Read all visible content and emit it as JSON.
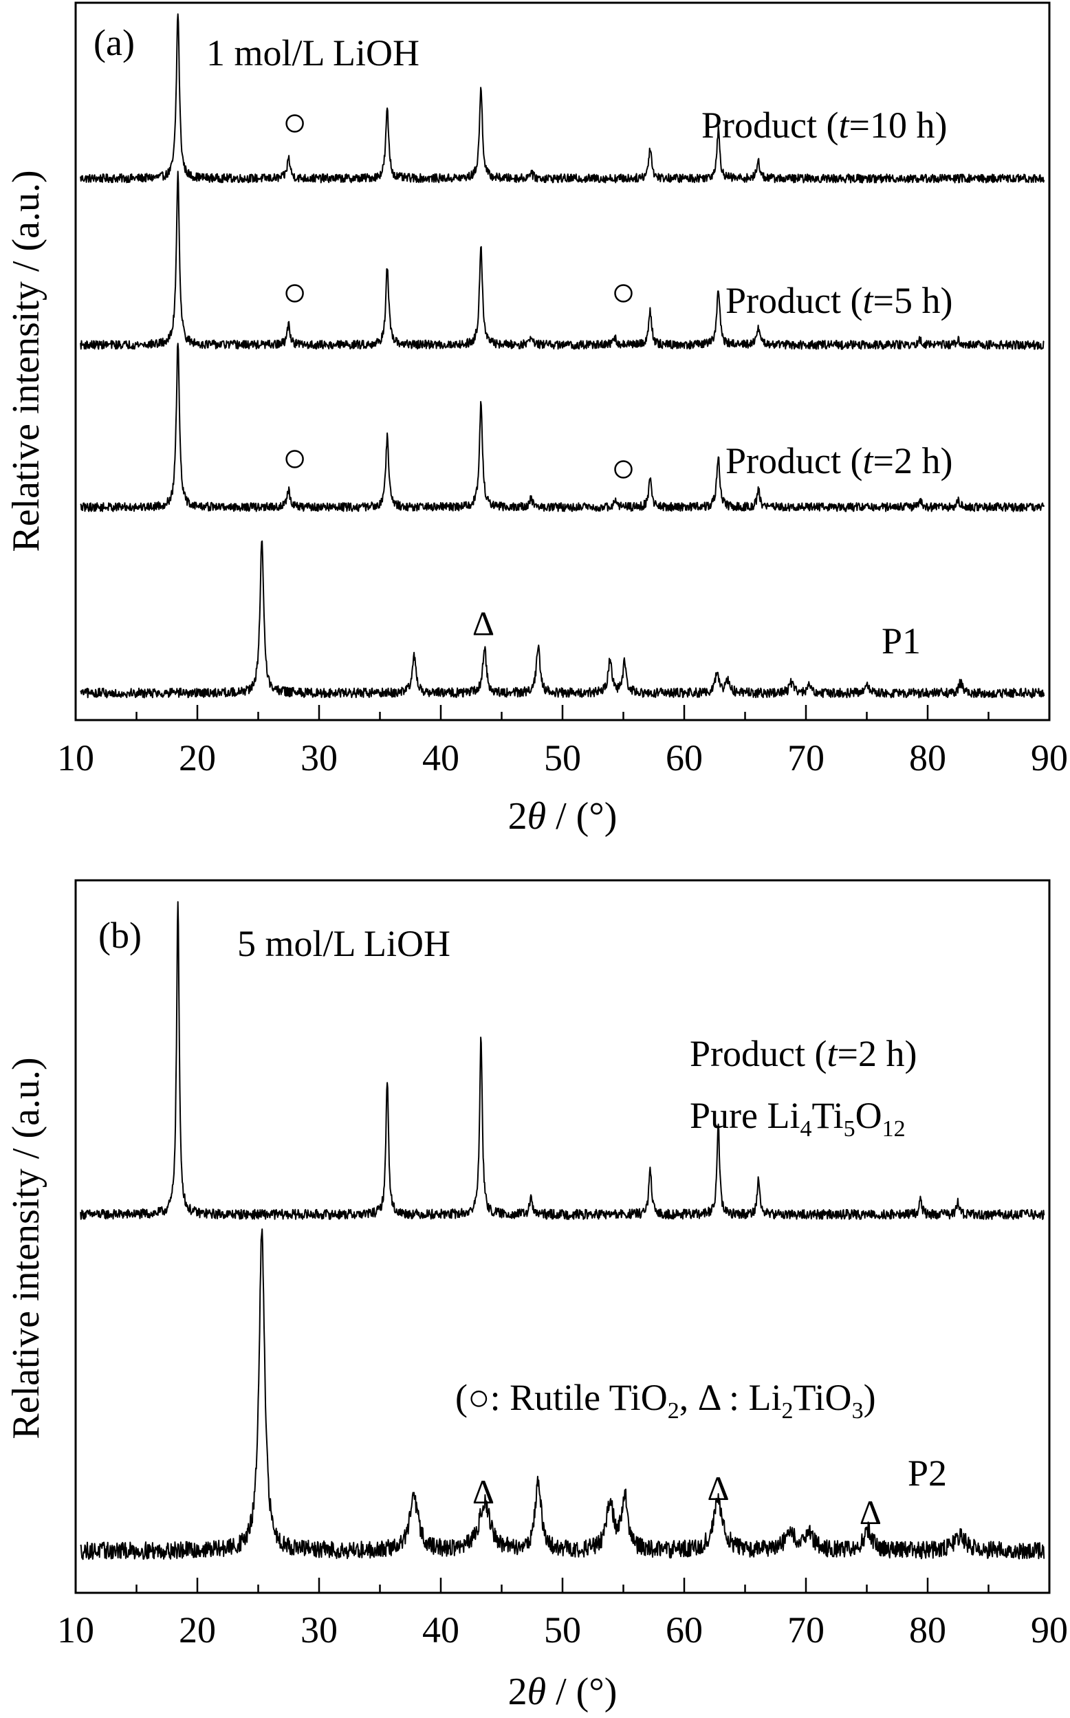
{
  "chart_data": [
    {
      "type": "line",
      "panel": "(a)",
      "annotation": "1 mol/L LiOH",
      "xlabel": "2θ / (°)",
      "ylabel": "Relative intensity / (a.u.)",
      "xlim": [
        10,
        90
      ],
      "xticks": [
        10,
        20,
        30,
        40,
        50,
        60,
        70,
        80,
        90
      ],
      "xtick_labels": [
        "10",
        "20",
        "30",
        "40",
        "50",
        "60",
        "70",
        "80",
        "90"
      ],
      "yticks_shown": false,
      "series": [
        {
          "name": "Product (t=10 h)",
          "baseline": 0.05,
          "noise": 0.025,
          "peaks": [
            [
              18.4,
              0.97,
              0.15
            ],
            [
              27.5,
              0.12,
              0.15
            ],
            [
              35.6,
              0.4,
              0.15
            ],
            [
              43.3,
              0.52,
              0.15
            ],
            [
              47.4,
              0.04,
              0.15
            ],
            [
              57.2,
              0.18,
              0.15
            ],
            [
              62.8,
              0.28,
              0.15
            ],
            [
              66.1,
              0.1,
              0.15
            ]
          ],
          "markers": [
            {
              "symbol": "○",
              "x": 28.0,
              "y": 0.37
            }
          ]
        },
        {
          "name": "Product (t=5 h)",
          "baseline": 0.05,
          "noise": 0.025,
          "peaks": [
            [
              18.4,
              1.0,
              0.15
            ],
            [
              27.5,
              0.12,
              0.15
            ],
            [
              35.6,
              0.45,
              0.15
            ],
            [
              43.3,
              0.58,
              0.15
            ],
            [
              47.4,
              0.05,
              0.15
            ],
            [
              54.3,
              0.04,
              0.15
            ],
            [
              57.2,
              0.2,
              0.15
            ],
            [
              62.8,
              0.33,
              0.15
            ],
            [
              66.1,
              0.1,
              0.15
            ],
            [
              79.4,
              0.03,
              0.15
            ],
            [
              82.5,
              0.03,
              0.15
            ]
          ],
          "markers": [
            {
              "symbol": "○",
              "x": 28.0,
              "y": 0.35
            },
            {
              "symbol": "○",
              "x": 55.0,
              "y": 0.35
            }
          ]
        },
        {
          "name": "Product (t=2 h)",
          "baseline": 0.05,
          "noise": 0.025,
          "peaks": [
            [
              18.4,
              0.97,
              0.15
            ],
            [
              27.5,
              0.1,
              0.15
            ],
            [
              35.6,
              0.41,
              0.15
            ],
            [
              43.3,
              0.6,
              0.15
            ],
            [
              47.4,
              0.05,
              0.15
            ],
            [
              54.3,
              0.04,
              0.15
            ],
            [
              57.2,
              0.16,
              0.15
            ],
            [
              62.8,
              0.3,
              0.15
            ],
            [
              66.1,
              0.1,
              0.15
            ],
            [
              79.4,
              0.03,
              0.15
            ],
            [
              82.5,
              0.04,
              0.15
            ]
          ],
          "markers": [
            {
              "symbol": "○",
              "x": 28.0,
              "y": 0.33
            },
            {
              "symbol": "○",
              "x": 55.0,
              "y": 0.27
            }
          ]
        },
        {
          "name": "P1",
          "baseline": 0.05,
          "noise": 0.028,
          "peaks": [
            [
              25.3,
              0.9,
              0.18
            ],
            [
              37.8,
              0.22,
              0.2
            ],
            [
              43.6,
              0.27,
              0.18
            ],
            [
              48.0,
              0.28,
              0.18
            ],
            [
              53.9,
              0.2,
              0.18
            ],
            [
              55.1,
              0.18,
              0.18
            ],
            [
              62.7,
              0.12,
              0.2
            ],
            [
              63.6,
              0.08,
              0.2
            ],
            [
              68.8,
              0.06,
              0.2
            ],
            [
              70.3,
              0.05,
              0.2
            ],
            [
              75.1,
              0.04,
              0.2
            ],
            [
              82.7,
              0.06,
              0.2
            ]
          ],
          "markers": [
            {
              "symbol": "Δ",
              "x": 43.5,
              "y": 0.46
            }
          ]
        }
      ]
    },
    {
      "type": "line",
      "panel": "(b)",
      "annotation": "5 mol/L LiOH",
      "xlabel": "2θ / (°)",
      "ylabel": "Relative intensity / (a.u.)",
      "xlim": [
        10,
        90
      ],
      "xticks": [
        10,
        20,
        30,
        40,
        50,
        60,
        70,
        80,
        90
      ],
      "xtick_labels": [
        "10",
        "20",
        "30",
        "40",
        "50",
        "60",
        "70",
        "80",
        "90"
      ],
      "yticks_shown": false,
      "series": [
        {
          "name": "Product (t=2 h)",
          "sublabel": "Pure Li₄Ti₅O₁₂",
          "baseline": 0.03,
          "noise": 0.015,
          "peaks": [
            [
              18.4,
              0.97,
              0.13
            ],
            [
              35.6,
              0.42,
              0.13
            ],
            [
              43.3,
              0.55,
              0.13
            ],
            [
              47.4,
              0.05,
              0.13
            ],
            [
              57.2,
              0.14,
              0.13
            ],
            [
              62.8,
              0.27,
              0.13
            ],
            [
              66.1,
              0.11,
              0.13
            ],
            [
              79.4,
              0.05,
              0.13
            ],
            [
              82.5,
              0.04,
              0.13
            ]
          ],
          "markers": []
        },
        {
          "name": "P2",
          "baseline": 0.05,
          "noise": 0.025,
          "peaks": [
            [
              25.3,
              0.92,
              0.28
            ],
            [
              37.8,
              0.15,
              0.45
            ],
            [
              43.6,
              0.14,
              0.55
            ],
            [
              48.0,
              0.2,
              0.3
            ],
            [
              53.9,
              0.14,
              0.35
            ],
            [
              55.1,
              0.16,
              0.3
            ],
            [
              62.8,
              0.14,
              0.5
            ],
            [
              68.7,
              0.05,
              0.5
            ],
            [
              70.2,
              0.05,
              0.5
            ],
            [
              75.1,
              0.06,
              0.4
            ],
            [
              82.7,
              0.04,
              0.6
            ]
          ],
          "markers": [
            {
              "symbol": "Δ",
              "x": 43.5,
              "y": 0.22
            },
            {
              "symbol": "Δ",
              "x": 62.8,
              "y": 0.23
            },
            {
              "symbol": "Δ",
              "x": 75.3,
              "y": 0.16
            }
          ]
        }
      ]
    }
  ],
  "legend_note": "(○: Rutile TiO₂,  Δ : Li₂TiO₃)"
}
